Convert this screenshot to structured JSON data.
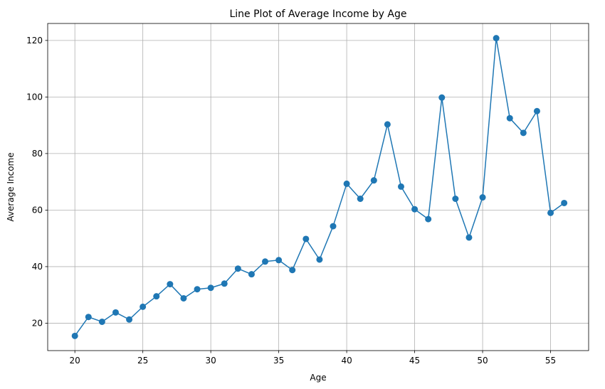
{
  "chart_data": {
    "type": "line",
    "title": "Line Plot of Average Income by Age",
    "xlabel": "Age",
    "ylabel": "Average Income",
    "xlim": [
      18,
      57.8
    ],
    "ylim": [
      10.3,
      126
    ],
    "xticks": [
      20,
      25,
      30,
      35,
      40,
      45,
      50,
      55
    ],
    "yticks": [
      20,
      40,
      60,
      80,
      100,
      120
    ],
    "grid": true,
    "color": "#1f77b4",
    "marker": "circle",
    "series": [
      {
        "x": [
          20,
          21,
          22,
          23,
          24,
          25,
          26,
          27,
          28,
          29,
          30,
          31,
          32,
          33,
          34,
          35,
          36,
          37,
          38,
          39,
          40,
          41,
          42,
          43,
          44,
          45,
          46,
          47,
          48,
          49,
          50,
          51,
          52,
          53,
          54,
          55,
          56
        ],
        "values": [
          15.5,
          22.2,
          20.5,
          23.8,
          21.3,
          25.8,
          29.5,
          33.8,
          28.8,
          32.0,
          32.5,
          34.0,
          39.3,
          37.3,
          41.8,
          42.3,
          38.8,
          49.8,
          42.5,
          54.3,
          69.3,
          64.0,
          70.5,
          90.3,
          68.3,
          60.3,
          56.8,
          99.8,
          64.0,
          50.3,
          64.5,
          120.8,
          92.5,
          87.3,
          95.0,
          59.0,
          62.5
        ]
      }
    ]
  }
}
